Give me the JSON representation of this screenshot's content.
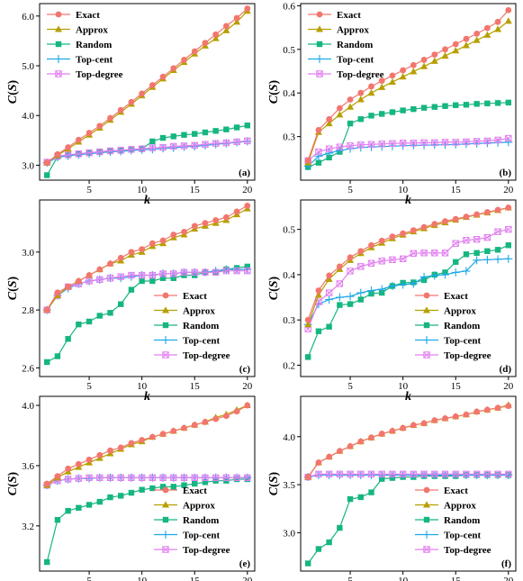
{
  "figure": {
    "ylabel": "C(S)",
    "xlabel": "k"
  },
  "styles": {
    "Exact": {
      "color": "#f2766d",
      "marker": "circle"
    },
    "Approx": {
      "color": "#b79f00",
      "marker": "triangle"
    },
    "Random": {
      "color": "#15b67f",
      "marker": "square"
    },
    "Top-cent": {
      "color": "#1ea8e6",
      "marker": "plus"
    },
    "Top-degree": {
      "color": "#e27ff0",
      "marker": "boxcross"
    }
  },
  "chart_data": [
    {
      "type": "line",
      "panel_label": "(a)",
      "xlabel": "k",
      "ylabel": "C(S)",
      "xlim": [
        0.3,
        20.7
      ],
      "ylim": [
        2.7,
        6.25
      ],
      "xticks": [
        5,
        10,
        15,
        20
      ],
      "yticks": [
        3.0,
        4.0,
        5.0,
        6.0
      ],
      "ytick_labels": [
        "3.0",
        "4.0",
        "5.0",
        "6.0"
      ],
      "legend_position": "top-left",
      "grid": false,
      "x": [
        1,
        2,
        3,
        4,
        5,
        6,
        7,
        8,
        9,
        10,
        11,
        12,
        13,
        14,
        15,
        16,
        17,
        18,
        19,
        20
      ],
      "series": [
        {
          "name": "Exact",
          "values": [
            3.05,
            3.22,
            3.36,
            3.51,
            3.65,
            3.79,
            3.95,
            4.11,
            4.27,
            4.44,
            4.61,
            4.78,
            4.95,
            5.12,
            5.29,
            5.46,
            5.63,
            5.8,
            5.96,
            6.15
          ]
        },
        {
          "name": "Approx",
          "values": [
            3.05,
            3.2,
            3.33,
            3.47,
            3.61,
            3.75,
            3.91,
            4.07,
            4.23,
            4.4,
            4.57,
            4.74,
            4.91,
            5.07,
            5.24,
            5.4,
            5.55,
            5.71,
            5.88,
            6.1
          ]
        },
        {
          "name": "Random",
          "values": [
            2.8,
            3.17,
            3.2,
            3.23,
            3.25,
            3.27,
            3.29,
            3.3,
            3.31,
            3.33,
            3.48,
            3.55,
            3.58,
            3.61,
            3.63,
            3.66,
            3.69,
            3.72,
            3.76,
            3.8
          ]
        },
        {
          "name": "Top-cent",
          "values": [
            3.05,
            3.16,
            3.19,
            3.21,
            3.23,
            3.25,
            3.27,
            3.28,
            3.3,
            3.31,
            3.32,
            3.34,
            3.35,
            3.37,
            3.38,
            3.4,
            3.42,
            3.44,
            3.46,
            3.48
          ]
        },
        {
          "name": "Top-degree",
          "values": [
            3.06,
            3.18,
            3.21,
            3.23,
            3.25,
            3.27,
            3.29,
            3.3,
            3.32,
            3.33,
            3.35,
            3.36,
            3.38,
            3.39,
            3.4,
            3.42,
            3.44,
            3.45,
            3.47,
            3.49
          ]
        }
      ]
    },
    {
      "type": "line",
      "panel_label": "(b)",
      "xlabel": "k",
      "ylabel": "C(S)",
      "xlim": [
        0.3,
        20.7
      ],
      "ylim": [
        0.2,
        0.605
      ],
      "xticks": [
        5,
        10,
        15,
        20
      ],
      "yticks": [
        0.3,
        0.4,
        0.5,
        0.6
      ],
      "ytick_labels": [
        "0.3",
        "0.4",
        "0.5",
        "0.6"
      ],
      "legend_position": "top-left",
      "grid": false,
      "x": [
        1,
        2,
        3,
        4,
        5,
        6,
        7,
        8,
        9,
        10,
        11,
        12,
        13,
        14,
        15,
        16,
        17,
        18,
        19,
        20
      ],
      "series": [
        {
          "name": "Exact",
          "values": [
            0.245,
            0.315,
            0.34,
            0.365,
            0.385,
            0.4,
            0.415,
            0.428,
            0.44,
            0.452,
            0.464,
            0.476,
            0.488,
            0.5,
            0.512,
            0.524,
            0.536,
            0.549,
            0.563,
            0.59
          ]
        },
        {
          "name": "Approx",
          "values": [
            0.24,
            0.31,
            0.33,
            0.35,
            0.368,
            0.385,
            0.4,
            0.413,
            0.425,
            0.437,
            0.449,
            0.461,
            0.473,
            0.485,
            0.497,
            0.509,
            0.521,
            0.533,
            0.546,
            0.565
          ]
        },
        {
          "name": "Random",
          "values": [
            0.23,
            0.24,
            0.252,
            0.265,
            0.33,
            0.34,
            0.348,
            0.352,
            0.356,
            0.36,
            0.363,
            0.366,
            0.368,
            0.37,
            0.372,
            0.373,
            0.375,
            0.376,
            0.377,
            0.378
          ]
        },
        {
          "name": "Top-cent",
          "values": [
            0.232,
            0.255,
            0.262,
            0.268,
            0.272,
            0.275,
            0.276,
            0.277,
            0.278,
            0.279,
            0.28,
            0.28,
            0.281,
            0.281,
            0.282,
            0.283,
            0.284,
            0.285,
            0.286,
            0.287
          ]
        },
        {
          "name": "Top-degree",
          "values": [
            0.245,
            0.265,
            0.272,
            0.276,
            0.279,
            0.281,
            0.282,
            0.283,
            0.284,
            0.285,
            0.285,
            0.286,
            0.286,
            0.287,
            0.287,
            0.288,
            0.289,
            0.29,
            0.292,
            0.296
          ]
        }
      ]
    },
    {
      "type": "line",
      "panel_label": "(c)",
      "xlabel": "k",
      "ylabel": "C(S)",
      "xlim": [
        0.3,
        20.7
      ],
      "ylim": [
        2.57,
        3.18
      ],
      "xticks": [
        5,
        10,
        15,
        20
      ],
      "yticks": [
        2.6,
        2.8,
        3.0
      ],
      "ytick_labels": [
        "2.6",
        "2.8",
        "3.0"
      ],
      "legend_position": "bottom-right",
      "grid": false,
      "x": [
        1,
        2,
        3,
        4,
        5,
        6,
        7,
        8,
        9,
        10,
        11,
        12,
        13,
        14,
        15,
        16,
        17,
        18,
        19,
        20
      ],
      "series": [
        {
          "name": "Exact",
          "values": [
            2.8,
            2.86,
            2.88,
            2.9,
            2.92,
            2.94,
            2.96,
            2.98,
            3.0,
            3.01,
            3.03,
            3.04,
            3.06,
            3.07,
            3.09,
            3.1,
            3.11,
            3.12,
            3.14,
            3.16
          ]
        },
        {
          "name": "Approx",
          "values": [
            2.8,
            2.85,
            2.88,
            2.9,
            2.92,
            2.94,
            2.96,
            2.97,
            2.99,
            3.0,
            3.02,
            3.03,
            3.05,
            3.06,
            3.08,
            3.09,
            3.1,
            3.11,
            3.13,
            3.15
          ]
        },
        {
          "name": "Random",
          "values": [
            2.62,
            2.64,
            2.7,
            2.75,
            2.76,
            2.78,
            2.79,
            2.82,
            2.87,
            2.9,
            2.9,
            2.91,
            2.91,
            2.92,
            2.92,
            2.93,
            2.93,
            2.94,
            2.945,
            2.95
          ]
        },
        {
          "name": "Top-cent",
          "values": [
            2.8,
            2.85,
            2.875,
            2.89,
            2.9,
            2.905,
            2.91,
            2.91,
            2.915,
            2.92,
            2.92,
            2.925,
            2.925,
            2.93,
            2.93,
            2.93,
            2.935,
            2.94,
            2.94,
            2.94
          ]
        },
        {
          "name": "Top-degree",
          "values": [
            2.8,
            2.85,
            2.88,
            2.89,
            2.9,
            2.905,
            2.91,
            2.915,
            2.92,
            2.92,
            2.92,
            2.925,
            2.925,
            2.93,
            2.93,
            2.93,
            2.93,
            2.935,
            2.935,
            2.935
          ]
        }
      ]
    },
    {
      "type": "line",
      "panel_label": "(d)",
      "xlabel": "k",
      "ylabel": "C(S)",
      "xlim": [
        0.3,
        20.7
      ],
      "ylim": [
        0.175,
        0.565
      ],
      "xticks": [
        5,
        10,
        15,
        20
      ],
      "yticks": [
        0.2,
        0.3,
        0.4,
        0.5
      ],
      "ytick_labels": [
        "0.2",
        "0.3",
        "0.4",
        "0.5"
      ],
      "legend_position": "bottom-right",
      "grid": false,
      "x": [
        1,
        2,
        3,
        4,
        5,
        6,
        7,
        8,
        9,
        10,
        11,
        12,
        13,
        14,
        15,
        16,
        17,
        18,
        19,
        20
      ],
      "series": [
        {
          "name": "Exact",
          "values": [
            0.3,
            0.365,
            0.398,
            0.418,
            0.438,
            0.452,
            0.465,
            0.475,
            0.484,
            0.491,
            0.498,
            0.505,
            0.512,
            0.518,
            0.523,
            0.528,
            0.533,
            0.538,
            0.543,
            0.548
          ]
        },
        {
          "name": "Approx",
          "values": [
            0.29,
            0.355,
            0.39,
            0.412,
            0.432,
            0.447,
            0.46,
            0.47,
            0.48,
            0.488,
            0.495,
            0.502,
            0.509,
            0.515,
            0.521,
            0.527,
            0.532,
            0.537,
            0.542,
            0.548
          ]
        },
        {
          "name": "Random",
          "values": [
            0.218,
            0.275,
            0.285,
            0.333,
            0.335,
            0.345,
            0.358,
            0.36,
            0.375,
            0.382,
            0.383,
            0.388,
            0.4,
            0.405,
            0.428,
            0.445,
            0.448,
            0.452,
            0.455,
            0.465
          ]
        },
        {
          "name": "Top-cent",
          "values": [
            0.29,
            0.335,
            0.345,
            0.35,
            0.352,
            0.36,
            0.365,
            0.368,
            0.375,
            0.378,
            0.38,
            0.395,
            0.398,
            0.4,
            0.405,
            0.408,
            0.432,
            0.433,
            0.434,
            0.435
          ]
        },
        {
          "name": "Top-degree",
          "values": [
            0.28,
            0.34,
            0.36,
            0.38,
            0.408,
            0.418,
            0.425,
            0.43,
            0.433,
            0.435,
            0.447,
            0.448,
            0.448,
            0.448,
            0.469,
            0.476,
            0.478,
            0.482,
            0.495,
            0.5
          ]
        }
      ]
    },
    {
      "type": "line",
      "panel_label": "(e)",
      "xlabel": "k",
      "ylabel": "C(S)",
      "xlim": [
        0.3,
        20.7
      ],
      "ylim": [
        2.9,
        4.06
      ],
      "xticks": [
        5,
        10,
        15,
        20
      ],
      "yticks": [
        3.2,
        3.6,
        4.0
      ],
      "ytick_labels": [
        "3.2",
        "3.6",
        "4.0"
      ],
      "legend_position": "bottom-right",
      "grid": false,
      "x": [
        1,
        2,
        3,
        4,
        5,
        6,
        7,
        8,
        9,
        10,
        11,
        12,
        13,
        14,
        15,
        16,
        17,
        18,
        19,
        20
      ],
      "series": [
        {
          "name": "Exact",
          "values": [
            3.48,
            3.53,
            3.58,
            3.61,
            3.64,
            3.67,
            3.7,
            3.72,
            3.75,
            3.77,
            3.79,
            3.81,
            3.83,
            3.85,
            3.87,
            3.89,
            3.91,
            3.93,
            3.96,
            4.0
          ]
        },
        {
          "name": "Approx",
          "values": [
            3.47,
            3.52,
            3.56,
            3.59,
            3.62,
            3.65,
            3.68,
            3.71,
            3.74,
            3.76,
            3.79,
            3.81,
            3.83,
            3.85,
            3.87,
            3.89,
            3.92,
            3.94,
            3.97,
            4.0
          ]
        },
        {
          "name": "Random",
          "values": [
            2.96,
            3.24,
            3.3,
            3.32,
            3.34,
            3.36,
            3.39,
            3.4,
            3.42,
            3.44,
            3.45,
            3.46,
            3.46,
            3.47,
            3.48,
            3.49,
            3.5,
            3.5,
            3.51,
            3.51
          ]
        },
        {
          "name": "Top-cent",
          "values": [
            3.47,
            3.5,
            3.51,
            3.515,
            3.515,
            3.52,
            3.52,
            3.52,
            3.52,
            3.52,
            3.52,
            3.52,
            3.52,
            3.52,
            3.52,
            3.52,
            3.52,
            3.52,
            3.52,
            3.52
          ]
        },
        {
          "name": "Top-degree",
          "values": [
            3.47,
            3.5,
            3.51,
            3.515,
            3.52,
            3.52,
            3.52,
            3.52,
            3.52,
            3.52,
            3.52,
            3.52,
            3.52,
            3.52,
            3.52,
            3.52,
            3.52,
            3.52,
            3.52,
            3.52
          ]
        }
      ]
    },
    {
      "type": "line",
      "panel_label": "(f)",
      "xlabel": "k",
      "ylabel": "C(S)",
      "xlim": [
        0.3,
        20.7
      ],
      "ylim": [
        2.6,
        4.42
      ],
      "xticks": [
        5,
        10,
        15,
        20
      ],
      "yticks": [
        3.0,
        3.5,
        4.0
      ],
      "ytick_labels": [
        "3.0",
        "3.5",
        "4.0"
      ],
      "legend_position": "bottom-right",
      "grid": false,
      "x": [
        1,
        2,
        3,
        4,
        5,
        6,
        7,
        8,
        9,
        10,
        11,
        12,
        13,
        14,
        15,
        16,
        17,
        18,
        19,
        20
      ],
      "series": [
        {
          "name": "Exact",
          "values": [
            3.58,
            3.73,
            3.79,
            3.85,
            3.9,
            3.95,
            3.99,
            4.03,
            4.06,
            4.09,
            4.12,
            4.14,
            4.17,
            4.19,
            4.21,
            4.23,
            4.26,
            4.28,
            4.3,
            4.32
          ]
        },
        {
          "name": "Approx",
          "values": [
            3.58,
            3.73,
            3.79,
            3.85,
            3.9,
            3.95,
            3.99,
            4.03,
            4.06,
            4.09,
            4.12,
            4.14,
            4.17,
            4.19,
            4.21,
            4.23,
            4.26,
            4.28,
            4.3,
            4.33
          ]
        },
        {
          "name": "Random",
          "values": [
            2.68,
            2.83,
            2.9,
            3.05,
            3.35,
            3.37,
            3.42,
            3.56,
            3.57,
            3.58,
            3.58,
            3.59,
            3.59,
            3.59,
            3.59,
            3.6,
            3.6,
            3.6,
            3.6,
            3.6
          ]
        },
        {
          "name": "Top-cent",
          "values": [
            3.58,
            3.6,
            3.6,
            3.6,
            3.6,
            3.6,
            3.6,
            3.6,
            3.6,
            3.6,
            3.6,
            3.6,
            3.6,
            3.6,
            3.6,
            3.6,
            3.6,
            3.6,
            3.6,
            3.6
          ]
        },
        {
          "name": "Top-degree",
          "values": [
            3.58,
            3.61,
            3.61,
            3.61,
            3.61,
            3.61,
            3.61,
            3.61,
            3.61,
            3.61,
            3.61,
            3.61,
            3.61,
            3.61,
            3.61,
            3.61,
            3.61,
            3.61,
            3.61,
            3.61
          ]
        }
      ]
    }
  ]
}
